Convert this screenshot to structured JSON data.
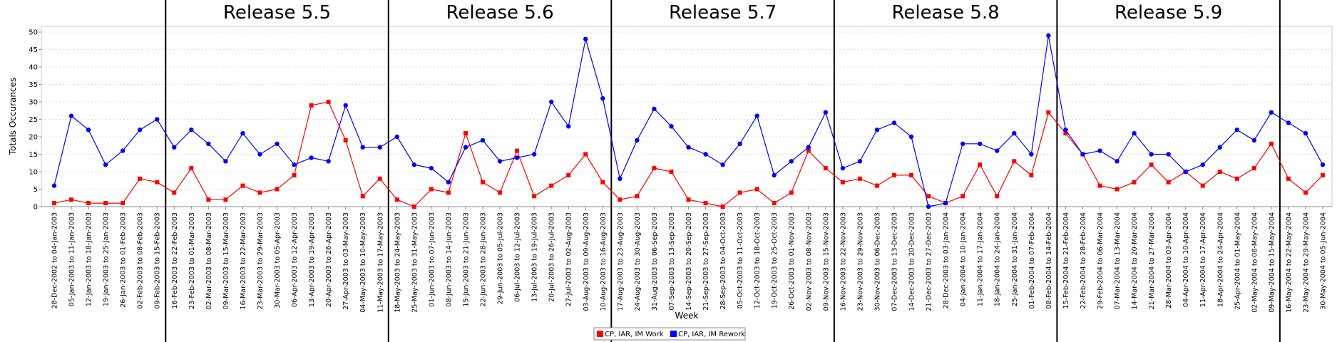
{
  "chart_data": {
    "type": "line",
    "xlabel": "Week",
    "ylabel": "Totals Occurances",
    "ylim": [
      0,
      50
    ],
    "yticks": [
      0,
      5,
      10,
      15,
      20,
      25,
      30,
      35,
      40,
      45,
      50
    ],
    "grid": "horizontal-dotted",
    "legend_position": "bottom-center",
    "categories": [
      "28-Dec-2002 to 04-Jan-2003",
      "05-Jan-2003 to 11-Jan-2003",
      "12-Jan-2003 to 18-Jan-2003",
      "19-Jan-2003 to 25-Jan-2003",
      "26-Jan-2003 to 01-Feb-2003",
      "02-Feb-2003 to 08-Feb-2003",
      "09-Feb-2003 to 15-Feb-2003",
      "16-Feb-2003 to 22-Feb-2003",
      "23-Feb-2003 to 01-Mar-2003",
      "02-Mar-2003 to 08-Mar-2003",
      "09-Mar-2003 to 15-Mar-2003",
      "16-Mar-2003 to 22-Mar-2003",
      "23-Mar-2003 to 29-Mar-2003",
      "30-Mar-2003 to 05-Apr-2003",
      "06-Apr-2003 to 12-Apr-2003",
      "13-Apr-2003 to 19-Apr-2003",
      "20-Apr-2003 to 26-Apr-2003",
      "27-Apr-2003 to 03-May-2003",
      "04-May-2003 to 10-May-2003",
      "11-May-2003 to 17-May-2003",
      "18-May-2003 to 24-May-2003",
      "25-May-2003 to 31-May-2003",
      "01-Jun-2003 to 07-Jun-2003",
      "08-Jun-2003 to 14-Jun-2003",
      "15-Jun-2003 to 21-Jun-2003",
      "22-Jun-2003 to 28-Jun-2003",
      "29-Jun-2003 to 05-Jul-2003",
      "06-Jul-2003 to 12-Jul-2003",
      "13-Jul-2003 to 19-Jul-2003",
      "20-Jul-2003 to 26-Jul-2003",
      "27-Jul-2003 to 02-Aug-2003",
      "03-Aug-2003 to 09-Aug-2003",
      "10-Aug-2003 to 16-Aug-2003",
      "17-Aug-2003 to 23-Aug-2003",
      "24-Aug-2003 to 30-Aug-2003",
      "31-Aug-2003 to 06-Sep-2003",
      "07-Sep-2003 to 13-Sep-2003",
      "14-Sep-2003 to 20-Sep-2003",
      "21-Sep-2003 to 27-Sep-2003",
      "28-Sep-2003 to 04-Oct-2003",
      "05-Oct-2003 to 11-Oct-2003",
      "12-Oct-2003 to 18-Oct-2003",
      "19-Oct-2003 to 25-Oct-2003",
      "26-Oct-2003 to 01-Nov-2003",
      "02-Nov-2003 to 08-Nov-2003",
      "09-Nov-2003 to 15-Nov-2003",
      "16-Nov-2003 to 22-Nov-2003",
      "23-Nov-2003 to 29-Nov-2003",
      "30-Nov-2003 to 06-Dec-2003",
      "07-Dec-2003 to 13-Dec-2003",
      "14-Dec-2003 to 20-Dec-2003",
      "21-Dec-2003 to 27-Dec-2003",
      "28-Dec-2003 to 03-Jan-2004",
      "04-Jan-2004 to 10-Jan-2004",
      "11-Jan-2004 to 17-Jan-2004",
      "18-Jan-2004 to 24-Jan-2004",
      "25-Jan-2004 to 31-Jan-2004",
      "01-Feb-2004 to 07-Feb-2004",
      "08-Feb-2004 to 14-Feb-2004",
      "15-Feb-2004 to 21-Feb-2004",
      "22-Feb-2004 to 28-Feb-2004",
      "29-Feb-2004 to 06-Mar-2004",
      "07-Mar-2004 to 13-Mar-2004",
      "14-Mar-2004 to 20-Mar-2004",
      "21-Mar-2004 to 27-Mar-2004",
      "28-Mar-2004 to 03-Apr-2004",
      "04-Apr-2004 to 10-Apr-2004",
      "11-Apr-2004 to 17-Apr-2004",
      "18-Apr-2004 to 24-Apr-2004",
      "25-Apr-2004 to 01-May-2004",
      "02-May-2004 to 08-May-2004",
      "09-May-2004 to 15-May-2004",
      "16-May-2004 to 22-May-2004",
      "23-May-2004 to 29-May-2004",
      "30-May-2004 to 05-Jun-2004"
    ],
    "series": [
      {
        "name": "CP, IAR, IM Work",
        "color": "#ff0000",
        "marker": "square",
        "values": [
          1,
          2,
          1,
          1,
          1,
          8,
          7,
          4,
          11,
          2,
          2,
          6,
          4,
          5,
          9,
          29,
          30,
          19,
          3,
          8,
          2,
          0,
          5,
          4,
          21,
          7,
          4,
          16,
          3,
          6,
          9,
          15,
          7,
          2,
          3,
          11,
          10,
          2,
          1,
          0,
          4,
          5,
          1,
          4,
          16,
          11,
          7,
          8,
          6,
          9,
          9,
          3,
          1,
          3,
          12,
          3,
          13,
          9,
          27,
          21,
          15,
          6,
          5,
          7,
          12,
          7,
          10,
          6,
          10,
          8,
          11,
          18,
          8,
          4,
          9
        ]
      },
      {
        "name": "CP, IAR, IM Rework",
        "color": "#0000ff",
        "marker": "circle",
        "values": [
          6,
          26,
          22,
          12,
          16,
          22,
          25,
          17,
          22,
          18,
          13,
          21,
          15,
          18,
          12,
          14,
          13,
          29,
          17,
          17,
          20,
          12,
          11,
          7,
          17,
          19,
          13,
          14,
          15,
          30,
          23,
          48,
          31,
          8,
          19,
          28,
          23,
          17,
          15,
          12,
          18,
          26,
          9,
          13,
          17,
          27,
          11,
          13,
          22,
          24,
          20,
          0,
          1,
          18,
          18,
          16,
          21,
          15,
          49,
          22,
          15,
          16,
          13,
          21,
          15,
          15,
          10,
          12,
          17,
          22,
          19,
          27,
          24,
          21,
          12
        ]
      }
    ],
    "releases": [
      {
        "label": "Release 5.5",
        "start_index": 7,
        "end_index": 19
      },
      {
        "label": "Release 5.6",
        "start_index": 20,
        "end_index": 32
      },
      {
        "label": "Release 5.7",
        "start_index": 33,
        "end_index": 45
      },
      {
        "label": "Release 5.8",
        "start_index": 46,
        "end_index": 58
      },
      {
        "label": "Release 5.9",
        "start_index": 59,
        "end_index": 71
      }
    ]
  }
}
